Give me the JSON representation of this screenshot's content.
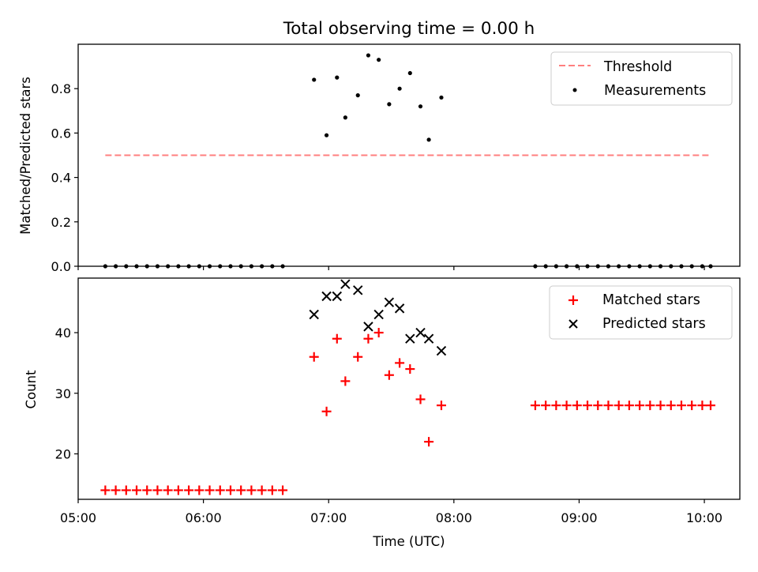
{
  "chart_data": {
    "title": "Total observing time = 0.00 h",
    "xlabel": "Time (UTC)",
    "xlim": [
      "05:00",
      "10:17"
    ],
    "x_ticks": [
      "05:00",
      "06:00",
      "07:00",
      "08:00",
      "09:00",
      "10:00"
    ],
    "top": {
      "type": "scatter",
      "ylabel": "Matched/Predicted stars",
      "ylim": [
        0,
        1.0
      ],
      "y_ticks": [
        "0.0",
        "0.2",
        "0.4",
        "0.6",
        "0.8"
      ],
      "legend": [
        "Threshold",
        "Measurements"
      ],
      "legend_position": "top-right",
      "threshold": {
        "name": "Threshold",
        "value": 0.5,
        "x_start": "05:13",
        "x_end": "10:03",
        "color": "#ff7f7f",
        "style": "dashed"
      },
      "measurements": {
        "name": "Measurements",
        "color": "#000000",
        "x": [
          "05:13",
          "05:18",
          "05:23",
          "05:28",
          "05:33",
          "05:38",
          "05:43",
          "05:48",
          "05:53",
          "05:58",
          "06:03",
          "06:08",
          "06:13",
          "06:18",
          "06:23",
          "06:28",
          "06:33",
          "06:38",
          "06:53",
          "06:59",
          "07:04",
          "07:08",
          "07:14",
          "07:19",
          "07:24",
          "07:29",
          "07:34",
          "07:39",
          "07:44",
          "07:48",
          "07:54",
          "08:39",
          "08:44",
          "08:49",
          "08:54",
          "08:59",
          "09:04",
          "09:09",
          "09:14",
          "09:19",
          "09:24",
          "09:29",
          "09:34",
          "09:39",
          "09:44",
          "09:49",
          "09:54",
          "09:59",
          "10:03"
        ],
        "y": [
          0,
          0,
          0,
          0,
          0,
          0,
          0,
          0,
          0,
          0,
          0,
          0,
          0,
          0,
          0,
          0,
          0,
          0,
          0.84,
          0.59,
          0.85,
          0.67,
          0.77,
          0.95,
          0.93,
          0.73,
          0.8,
          0.87,
          0.72,
          0.57,
          0.76,
          0,
          0,
          0,
          0,
          0,
          0,
          0,
          0,
          0,
          0,
          0,
          0,
          0,
          0,
          0,
          0,
          0,
          0
        ]
      }
    },
    "bottom": {
      "type": "scatter",
      "ylabel": "Count",
      "ylim": [
        12.5,
        49.0
      ],
      "y_ticks": [
        "20",
        "30",
        "40"
      ],
      "legend": [
        "Matched stars",
        "Predicted stars"
      ],
      "legend_position": "top-right",
      "series": [
        {
          "name": "Matched stars",
          "marker": "+",
          "color": "#ff0000",
          "x": [
            "05:13",
            "05:18",
            "05:23",
            "05:28",
            "05:33",
            "05:38",
            "05:43",
            "05:48",
            "05:53",
            "05:58",
            "06:03",
            "06:08",
            "06:13",
            "06:18",
            "06:23",
            "06:28",
            "06:33",
            "06:38",
            "06:53",
            "06:59",
            "07:04",
            "07:08",
            "07:14",
            "07:19",
            "07:24",
            "07:29",
            "07:34",
            "07:39",
            "07:44",
            "07:48",
            "07:54",
            "08:39",
            "08:44",
            "08:49",
            "08:54",
            "08:59",
            "09:04",
            "09:09",
            "09:14",
            "09:19",
            "09:24",
            "09:29",
            "09:34",
            "09:39",
            "09:44",
            "09:49",
            "09:54",
            "09:59",
            "10:03"
          ],
          "y": [
            14,
            14,
            14,
            14,
            14,
            14,
            14,
            14,
            14,
            14,
            14,
            14,
            14,
            14,
            14,
            14,
            14,
            14,
            36,
            27,
            39,
            32,
            36,
            39,
            40,
            33,
            35,
            34,
            29,
            22,
            28,
            28,
            28,
            28,
            28,
            28,
            28,
            28,
            28,
            28,
            28,
            28,
            28,
            28,
            28,
            28,
            28,
            28,
            28
          ]
        },
        {
          "name": "Predicted stars",
          "marker": "x",
          "color": "#000000",
          "x": [
            "06:53",
            "06:59",
            "07:04",
            "07:08",
            "07:14",
            "07:19",
            "07:24",
            "07:29",
            "07:34",
            "07:39",
            "07:44",
            "07:48",
            "07:54"
          ],
          "y": [
            43,
            46,
            46,
            48,
            47,
            41,
            43,
            45,
            44,
            39,
            40,
            39,
            37
          ]
        }
      ]
    }
  }
}
